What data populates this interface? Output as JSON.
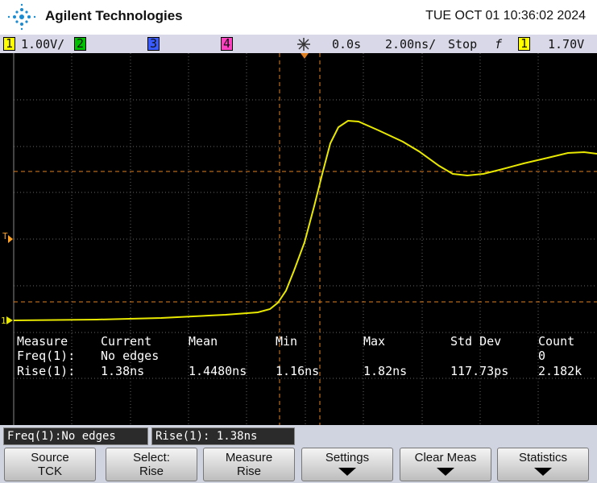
{
  "header": {
    "brand": "Agilent Technologies",
    "datetime": "TUE OCT 01 10:36:02 2024"
  },
  "status_bar": {
    "ch1": "1",
    "ch1_scale": "1.00V/",
    "ch2": "2",
    "ch3": "3",
    "ch4": "4",
    "time_offset": "0.0s",
    "time_scale": "2.00ns/",
    "run_state": "Stop",
    "trigger_slope": "f",
    "trigger_channel": "1",
    "trigger_level": "1.70V"
  },
  "screen_markers": {
    "trigger": "T",
    "ground": "1"
  },
  "measurements": {
    "headers": [
      "Measure",
      "Current",
      "Mean",
      "Min",
      "Max",
      "Std Dev",
      "Count"
    ],
    "rows": [
      {
        "label": "Freq(1):",
        "current": "No edges",
        "count": "0"
      },
      {
        "label": "Rise(1):",
        "current": "1.38ns",
        "mean": "1.4480ns",
        "min": "1.16ns",
        "max": "1.82ns",
        "std_dev": "117.73ps",
        "count": "2.182k"
      }
    ]
  },
  "status_line": [
    "Freq(1):No edges",
    "Rise(1): 1.38ns"
  ],
  "softkeys": [
    {
      "label": "Source",
      "value": "TCK"
    },
    {
      "label": "Select:",
      "value": "Rise"
    },
    {
      "label": "Measure",
      "value": "Rise"
    },
    {
      "label": "Settings"
    },
    {
      "label": "Clear Meas"
    },
    {
      "label": "Statistics"
    }
  ]
}
